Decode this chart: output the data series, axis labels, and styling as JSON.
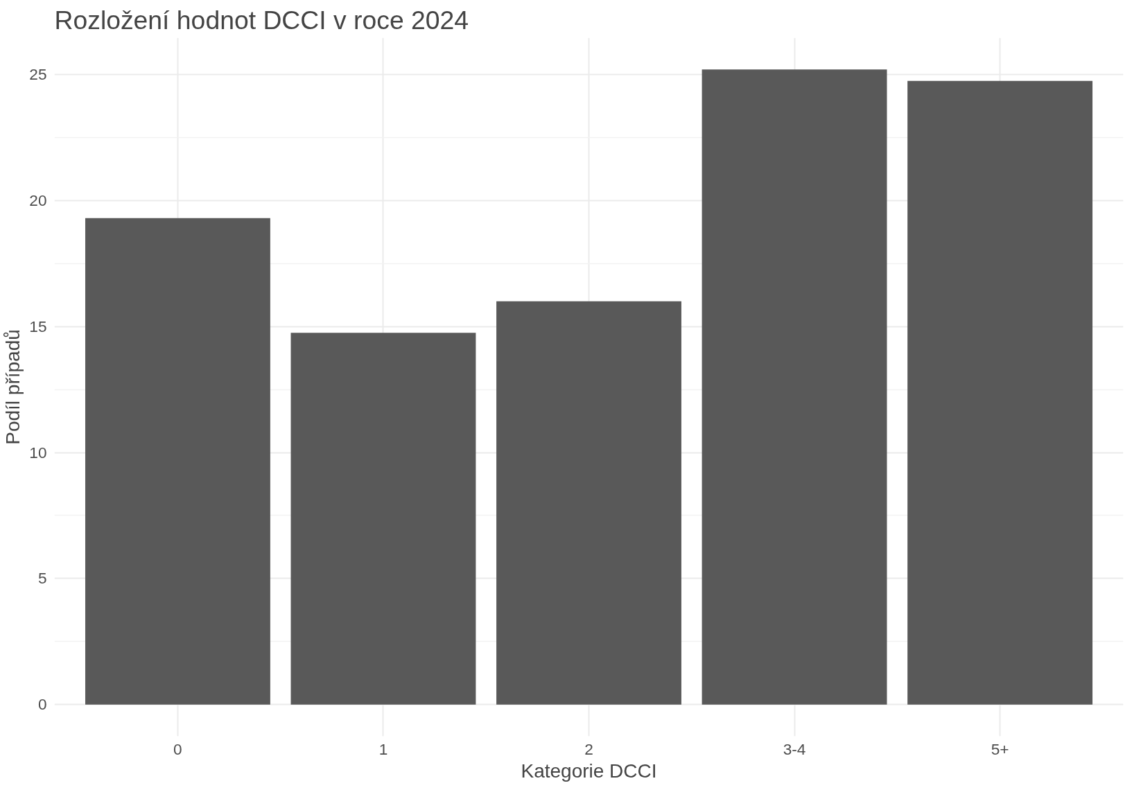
{
  "chart_data": {
    "type": "bar",
    "title": "Rozložení hodnot DCCI v roce 2024",
    "xlabel": "Kategorie DCCI",
    "ylabel": "Podíl případů",
    "categories": [
      "0",
      "1",
      "2",
      "3-4",
      "5+"
    ],
    "values": [
      19.3,
      14.75,
      16.0,
      25.2,
      24.75
    ],
    "color": "#595959",
    "ylim": [
      -1.26,
      26.46
    ],
    "yticks": [
      0,
      5,
      10,
      15,
      20,
      25
    ],
    "grid": true
  }
}
